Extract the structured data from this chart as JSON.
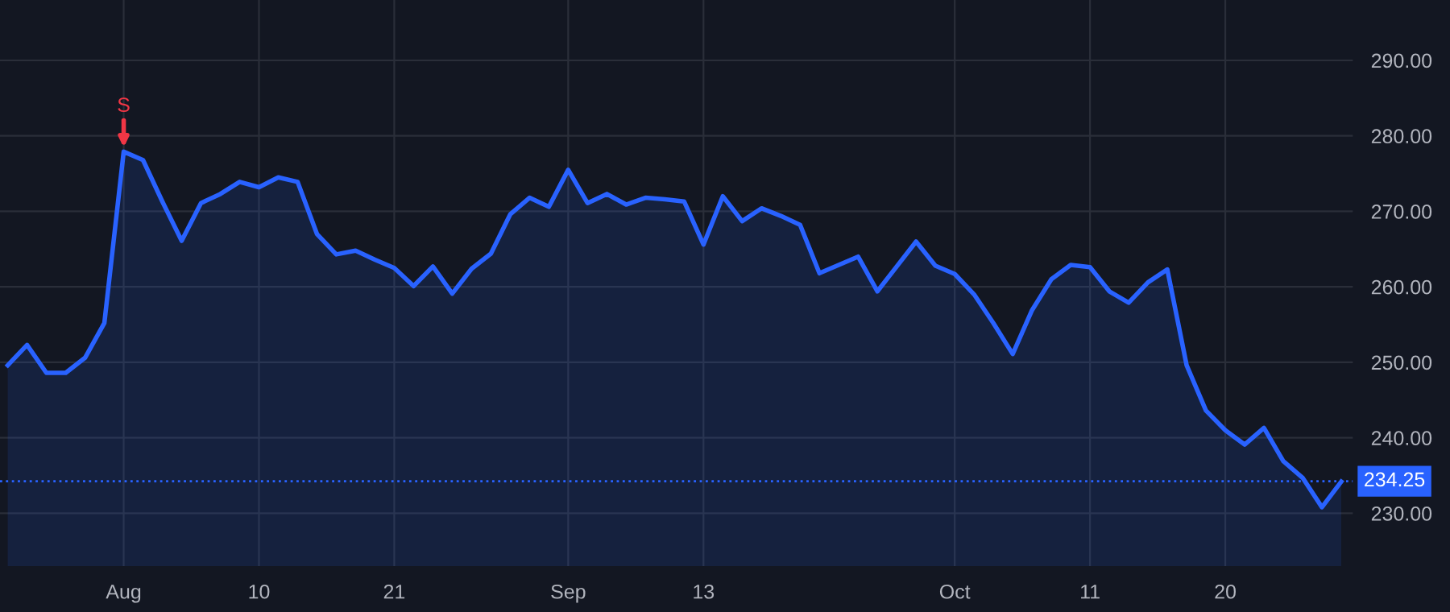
{
  "chart_data": {
    "type": "area",
    "categories": [
      null,
      null,
      null,
      null,
      null,
      null,
      "Aug",
      null,
      null,
      null,
      null,
      null,
      null,
      "10",
      null,
      null,
      null,
      null,
      null,
      null,
      "21",
      null,
      null,
      null,
      null,
      null,
      null,
      null,
      null,
      "Sep",
      null,
      null,
      null,
      null,
      null,
      null,
      "13",
      null,
      null,
      null,
      null,
      null,
      null,
      null,
      null,
      null,
      null,
      null,
      null,
      "Oct",
      null,
      null,
      null,
      null,
      null,
      null,
      "11",
      null,
      null,
      null,
      null,
      null,
      null,
      "20",
      null,
      null,
      null,
      null,
      null,
      null
    ],
    "series": [
      {
        "color": "#2962ff",
        "values": [
          249.6,
          252.3,
          248.6,
          248.6,
          250.6,
          255.2,
          277.9,
          276.8,
          271.3,
          266.1,
          271.1,
          272.3,
          273.9,
          273.2,
          274.5,
          273.9,
          267.0,
          264.3,
          264.8,
          263.6,
          262.5,
          260.1,
          262.7,
          259.1,
          262.4,
          264.4,
          269.6,
          271.8,
          270.6,
          275.5,
          271.1,
          272.3,
          270.9,
          271.8,
          271.6,
          271.3,
          265.6,
          272.0,
          268.7,
          270.4,
          269.4,
          268.2,
          261.8,
          262.9,
          264.0,
          259.4,
          262.7,
          266.0,
          262.8,
          261.7,
          259.0,
          255.2,
          251.1,
          256.9,
          261.0,
          262.9,
          262.6,
          259.4,
          257.9,
          260.6,
          262.3,
          249.6,
          243.6,
          241.0,
          239.1,
          241.3,
          236.9,
          234.7,
          230.8,
          234.2
        ]
      }
    ],
    "ylim": [
      223,
      298
    ],
    "yticks": [
      {
        "value": 230,
        "label": "230.00"
      },
      {
        "value": 240,
        "label": "240.00"
      },
      {
        "value": 250,
        "label": "250.00"
      },
      {
        "value": 260,
        "label": "260.00"
      },
      {
        "value": 270,
        "label": "270.00"
      },
      {
        "value": 280,
        "label": "280.00"
      },
      {
        "value": 290,
        "label": "290.00"
      }
    ],
    "grid": true,
    "ref_lines": [
      {
        "axis": "y",
        "value": 234.25,
        "label": "234.25",
        "color": "#2962ff",
        "line_style": "dotted"
      }
    ],
    "annotations": [
      {
        "text": "S",
        "x": "Aug",
        "y": 277.9
      }
    ]
  }
}
